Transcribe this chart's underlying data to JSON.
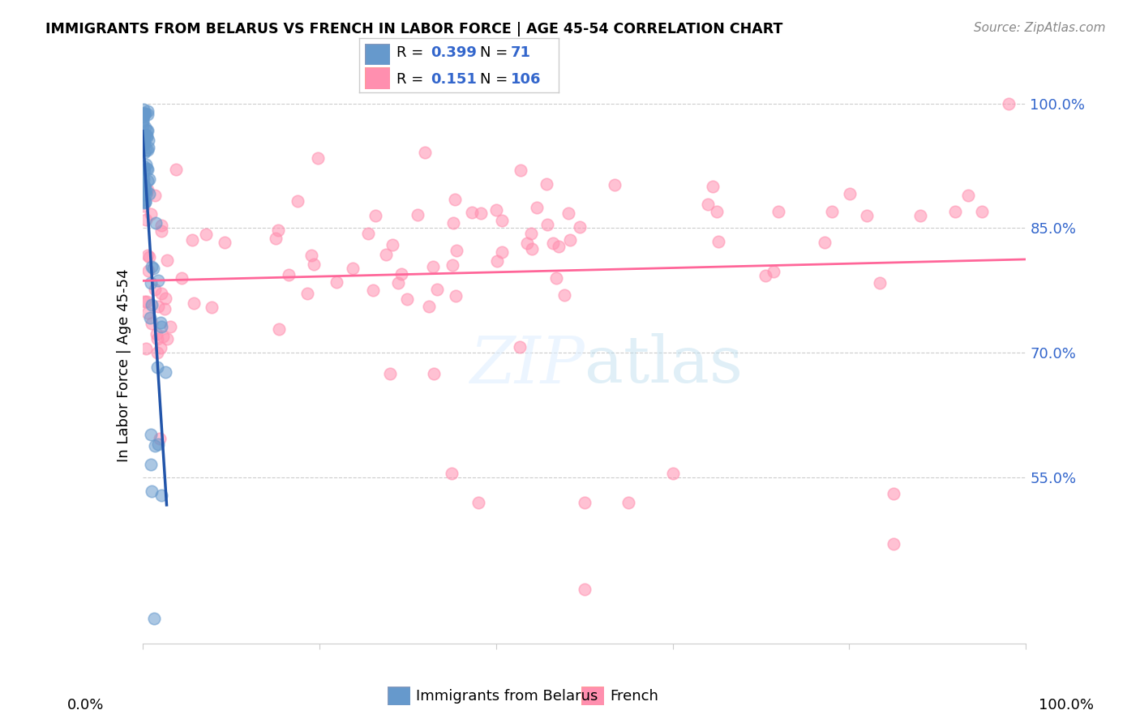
{
  "title": "IMMIGRANTS FROM BELARUS VS FRENCH IN LABOR FORCE | AGE 45-54 CORRELATION CHART",
  "source": "Source: ZipAtlas.com",
  "ylabel": "In Labor Force | Age 45-54",
  "watermark_zip": "ZIP",
  "watermark_atlas": "atlas",
  "legend_blue_label": "Immigrants from Belarus",
  "legend_pink_label": "French",
  "R_blue": 0.399,
  "N_blue": 71,
  "R_pink": 0.151,
  "N_pink": 106,
  "blue_color": "#6699CC",
  "pink_color": "#FF8FAF",
  "blue_line_color": "#2255AA",
  "pink_line_color": "#FF6699",
  "xlim": [
    0.0,
    1.0
  ],
  "ylim": [
    0.35,
    1.02
  ],
  "ytick_positions": [
    0.55,
    0.7,
    0.85,
    1.0
  ],
  "ytick_labels": [
    "55.0%",
    "70.0%",
    "85.0%",
    "100.0%"
  ]
}
